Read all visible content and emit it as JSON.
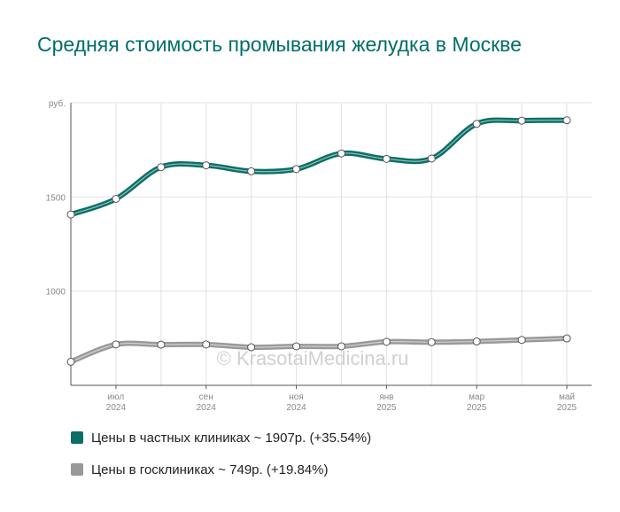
{
  "title": "Средняя стоимость промывания желудка в Москве",
  "watermark": "© KrasotaiMedicina.ru",
  "chart_data": {
    "type": "line",
    "y_unit_label": "руб.",
    "y_ticks": [
      1000,
      1500
    ],
    "ylim": [
      500,
      2000
    ],
    "x_tick_labels": [
      {
        "month": "июл",
        "year": "2024"
      },
      {
        "month": "сен",
        "year": "2024"
      },
      {
        "month": "ноя",
        "year": "2024"
      },
      {
        "month": "янв",
        "year": "2025"
      },
      {
        "month": "мар",
        "year": "2025"
      },
      {
        "month": "май",
        "year": "2025"
      }
    ],
    "categories": [
      "2024-06",
      "2024-07",
      "2024-08",
      "2024-09",
      "2024-10",
      "2024-11",
      "2024-12",
      "2025-01",
      "2025-02",
      "2025-03",
      "2025-04",
      "2025-05"
    ],
    "series": [
      {
        "name": "Цены в частных клиниках ~ 1907р. (+35.54%)",
        "color": "#0b6e67",
        "values": [
          1407,
          1490,
          1658,
          1668,
          1636,
          1648,
          1731,
          1702,
          1704,
          1888,
          1905,
          1907
        ]
      },
      {
        "name": "Цены в госклиниках ~ 749р. (+19.84%)",
        "color": "#999999",
        "values": [
          625,
          717,
          716,
          717,
          702,
          707,
          707,
          731,
          729,
          733,
          741,
          749
        ]
      }
    ],
    "grid": true,
    "legend_position": "bottom-left"
  }
}
